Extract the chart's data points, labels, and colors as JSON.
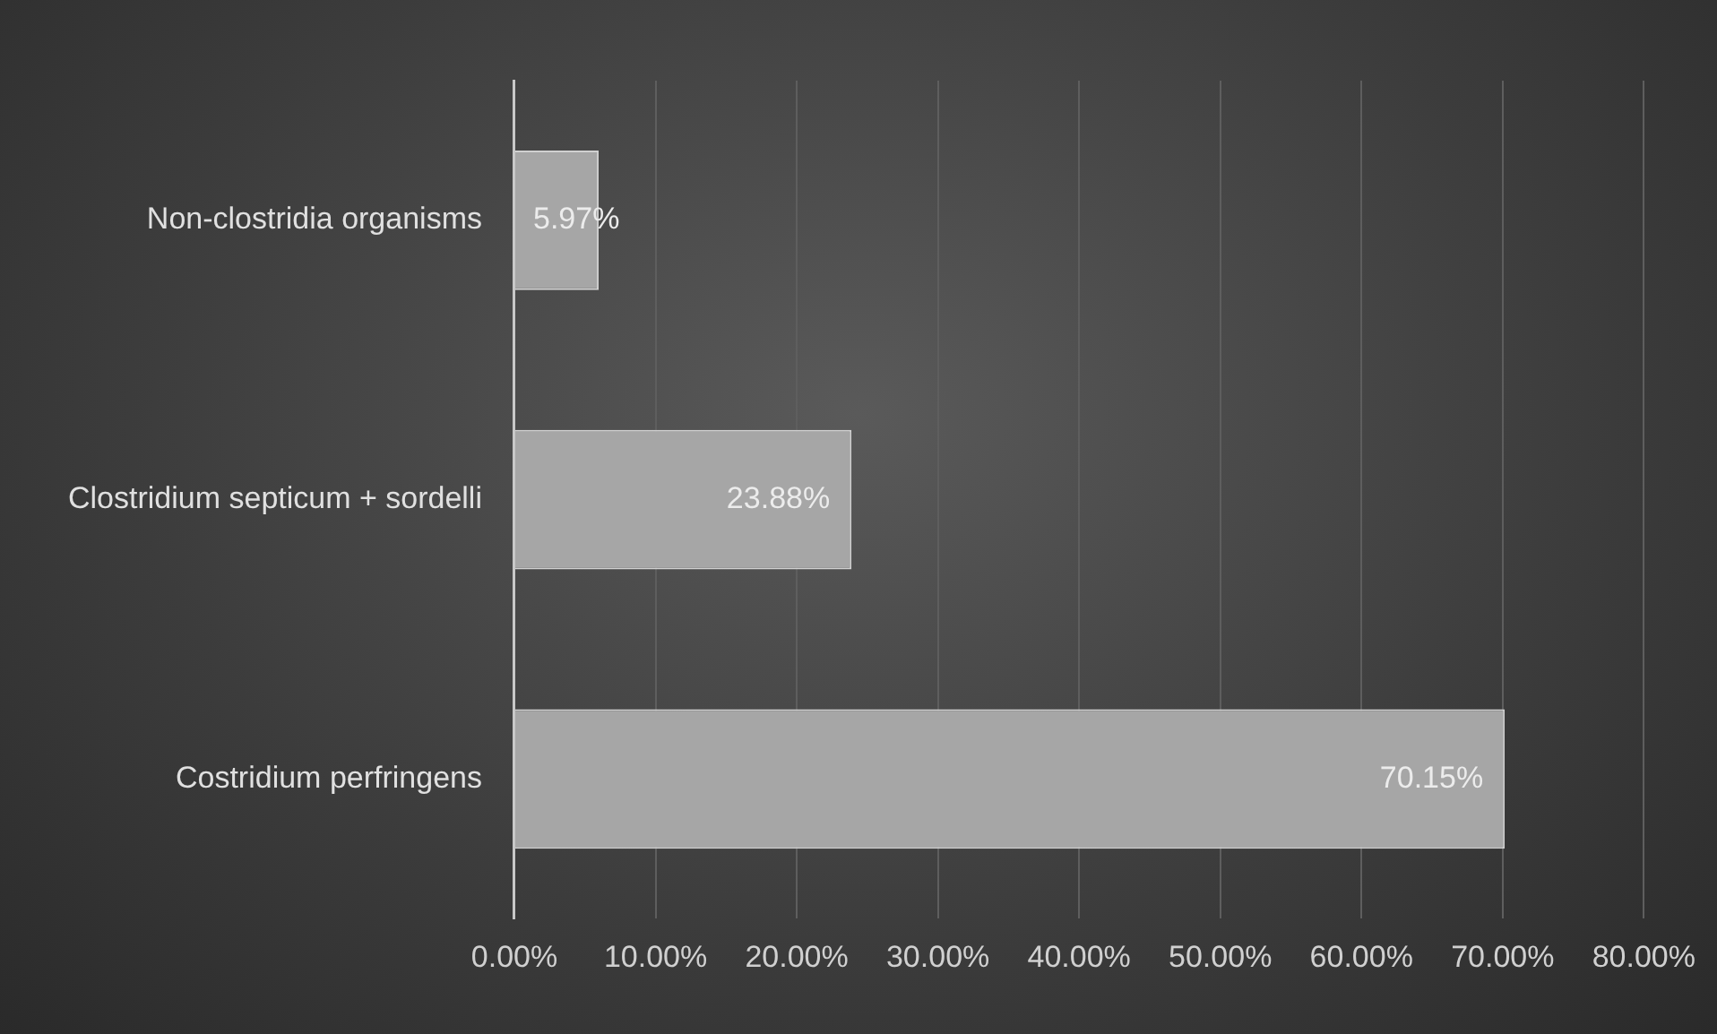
{
  "chart_data": {
    "type": "bar",
    "orientation": "horizontal",
    "categories": [
      "Non-clostridia organisms",
      "Clostridium septicum + sordelli",
      "Costridium perfringens"
    ],
    "values": [
      5.97,
      23.88,
      70.15
    ],
    "color": "#a6a6a6",
    "value_labels": [
      "5.97%",
      "23.88%",
      "70.15%"
    ],
    "xlim": [
      0,
      80
    ],
    "xticks": [
      {
        "value": 0,
        "label": "0.00%"
      },
      {
        "value": 10,
        "label": "10.00%"
      },
      {
        "value": 20,
        "label": "20.00%"
      },
      {
        "value": 30,
        "label": "30.00%"
      },
      {
        "value": 40,
        "label": "40.00%"
      },
      {
        "value": 50,
        "label": "50.00%"
      },
      {
        "value": 60,
        "label": "60.00%"
      },
      {
        "value": 70,
        "label": "70.00%"
      },
      {
        "value": 80,
        "label": "80.00%"
      }
    ],
    "grid": "x"
  }
}
